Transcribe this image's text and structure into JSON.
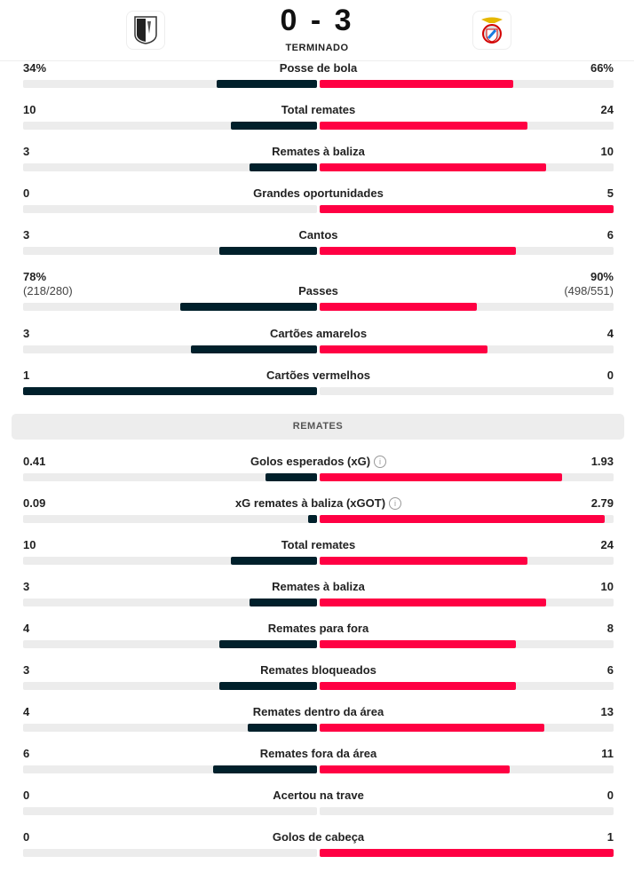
{
  "match": {
    "home_team_crest": "vitoria-guimaraes-crest",
    "away_team_crest": "benfica-crest",
    "score": "0 - 3",
    "status": "TERMINADO"
  },
  "colors": {
    "home": "#00202b",
    "away": "#ff0043",
    "track": "#ececec"
  },
  "sections": [
    {
      "title": null,
      "stats": [
        {
          "label": "Posse de bola",
          "home": "34%",
          "away": "66%",
          "home_value": 34,
          "away_value": 66
        },
        {
          "label": "Total remates",
          "home": "10",
          "away": "24",
          "home_value": 10,
          "away_value": 24
        },
        {
          "label": "Remates à baliza",
          "home": "3",
          "away": "10",
          "home_value": 3,
          "away_value": 10
        },
        {
          "label": "Grandes oportunidades",
          "home": "0",
          "away": "5",
          "home_value": 0,
          "away_value": 5
        },
        {
          "label": "Cantos",
          "home": "3",
          "away": "6",
          "home_value": 3,
          "away_value": 6
        },
        {
          "label": "Passes",
          "home": "78%",
          "away": "90%",
          "home_sub": "(218/280)",
          "away_sub": "(498/551)",
          "home_value": 78,
          "away_value": 90
        },
        {
          "label": "Cartões amarelos",
          "home": "3",
          "away": "4",
          "home_value": 3,
          "away_value": 4
        },
        {
          "label": "Cartões vermelhos",
          "home": "1",
          "away": "0",
          "home_value": 1,
          "away_value": 0
        }
      ]
    },
    {
      "title": "REMATES",
      "stats": [
        {
          "label": "Golos esperados (xG)",
          "info": true,
          "home": "0.41",
          "away": "1.93",
          "home_value": 0.41,
          "away_value": 1.93
        },
        {
          "label": "xG remates à baliza (xGOT)",
          "info": true,
          "home": "0.09",
          "away": "2.79",
          "home_value": 0.09,
          "away_value": 2.79
        },
        {
          "label": "Total remates",
          "home": "10",
          "away": "24",
          "home_value": 10,
          "away_value": 24
        },
        {
          "label": "Remates à baliza",
          "home": "3",
          "away": "10",
          "home_value": 3,
          "away_value": 10
        },
        {
          "label": "Remates para fora",
          "home": "4",
          "away": "8",
          "home_value": 4,
          "away_value": 8
        },
        {
          "label": "Remates bloqueados",
          "home": "3",
          "away": "6",
          "home_value": 3,
          "away_value": 6
        },
        {
          "label": "Remates dentro da área",
          "home": "4",
          "away": "13",
          "home_value": 4,
          "away_value": 13
        },
        {
          "label": "Remates fora da área",
          "home": "6",
          "away": "11",
          "home_value": 6,
          "away_value": 11
        },
        {
          "label": "Acertou na trave",
          "home": "0",
          "away": "0",
          "home_value": 0,
          "away_value": 0
        },
        {
          "label": "Golos de cabeça",
          "home": "0",
          "away": "1",
          "home_value": 0,
          "away_value": 1
        }
      ]
    }
  ]
}
